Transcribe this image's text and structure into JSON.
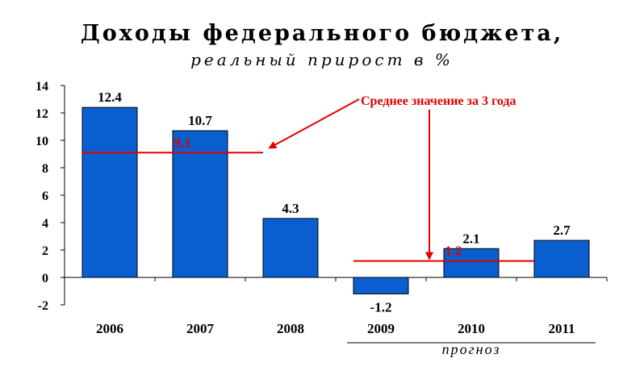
{
  "chart_data": {
    "type": "bar",
    "title": "Доходы федерального бюджета,",
    "subtitle": "реальный прирост в %",
    "categories": [
      "2006",
      "2007",
      "2008",
      "2009",
      "2010",
      "2011"
    ],
    "values": [
      12.4,
      10.7,
      4.3,
      -1.2,
      2.1,
      2.7
    ],
    "value_labels": [
      "12.4",
      "10.7",
      "4.3",
      "-1.2",
      "2.1",
      "2.7"
    ],
    "ylim": [
      -2,
      14
    ],
    "yticks": [
      -2,
      0,
      2,
      4,
      6,
      8,
      10,
      12,
      14
    ],
    "grid": false,
    "bar_color": "#0a5fd0",
    "averages": [
      {
        "label": "9.1",
        "value": 9.1,
        "from": "2006",
        "to": "2008"
      },
      {
        "label": "1.2",
        "value": 1.2,
        "from": "2009",
        "to": "2011"
      }
    ],
    "annotation": "Среднее значение за 3 года",
    "forecast_label": "прогноз",
    "forecast_from": "2009",
    "annotation_color": "#e00000"
  }
}
